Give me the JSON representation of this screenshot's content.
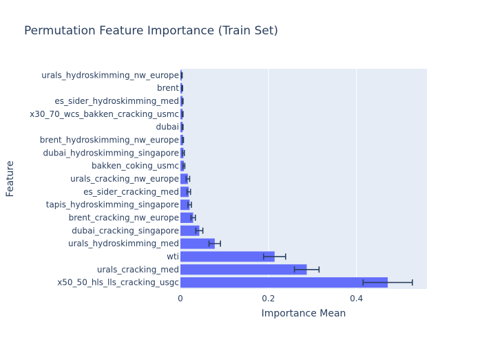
{
  "chart_data": {
    "type": "bar",
    "orientation": "horizontal",
    "title": "Permutation Feature Importance (Train Set)",
    "xlabel": "Importance Mean",
    "ylabel": "Feature",
    "xlim": [
      0,
      0.56
    ],
    "xticks": [
      0,
      0.2,
      0.4
    ],
    "xtick_labels": [
      "0",
      "0.2",
      "0.4"
    ],
    "grid": true,
    "colors": {
      "bar": "#636efa",
      "plot_bg": "#e5ecf6",
      "error_bar": "#2a3f5f",
      "grid": "#ffffff"
    },
    "categories": [
      "urals_hydroskimming_nw_europe",
      "brent",
      "es_sider_hydroskimming_med",
      "x30_70_wcs_bakken_cracking_usmc",
      "dubai",
      "brent_hydroskimming_nw_europe",
      "dubai_hydroskimming_singapore",
      "bakken_coking_usmc",
      "urals_cracking_nw_europe",
      "es_sider_cracking_med",
      "tapis_hydroskimming_singapore",
      "brent_cracking_nw_europe",
      "dubai_cracking_singapore",
      "urals_hydroskimming_med",
      "wti",
      "urals_cracking_med",
      "x50_50_hls_lls_cracking_usgc"
    ],
    "values": [
      0.003,
      0.004,
      0.005,
      0.005,
      0.005,
      0.006,
      0.007,
      0.008,
      0.017,
      0.019,
      0.021,
      0.029,
      0.043,
      0.078,
      0.214,
      0.287,
      0.471
    ],
    "errors": [
      0.001,
      0.001,
      0.001,
      0.001,
      0.001,
      0.001,
      0.002,
      0.002,
      0.004,
      0.004,
      0.004,
      0.005,
      0.008,
      0.013,
      0.025,
      0.028,
      0.056
    ]
  }
}
